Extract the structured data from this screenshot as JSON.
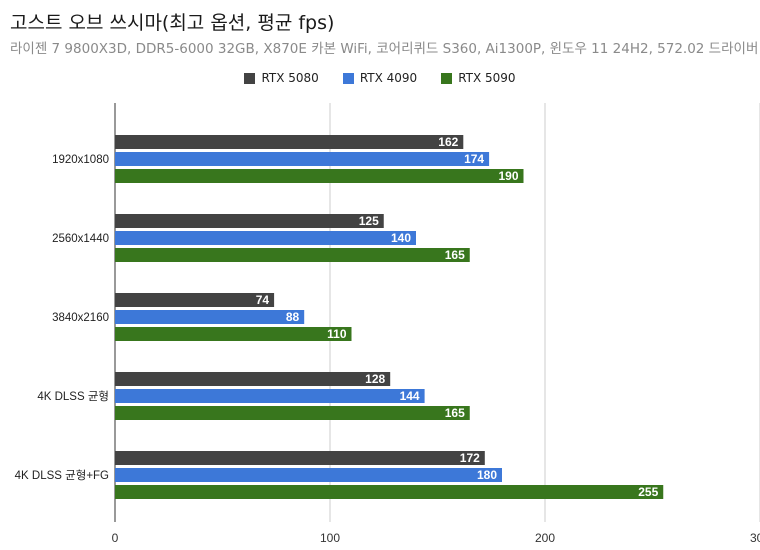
{
  "chart_data": {
    "type": "bar",
    "orientation": "horizontal",
    "title": "고스트 오브 쓰시마(최고 옵션, 평균 fps)",
    "subtitle": "라이젠 7 9800X3D, DDR5-6000 32GB, X870E 카본 WiFi, 코어리퀴드 S360, Ai1300P, 윈도우 11 24H2, 572.02 드라이버",
    "categories": [
      "1920x1080",
      "2560x1440",
      "3840x2160",
      "4K DLSS 균형",
      "4K DLSS 균형+FG"
    ],
    "series": [
      {
        "name": "RTX 5080",
        "color": "#434343",
        "values": [
          162,
          125,
          74,
          128,
          172
        ]
      },
      {
        "name": "RTX 4090",
        "color": "#3d78d8",
        "values": [
          174,
          140,
          88,
          144,
          180
        ]
      },
      {
        "name": "RTX 5090",
        "color": "#38761d",
        "values": [
          190,
          165,
          110,
          165,
          255
        ]
      }
    ],
    "xlim": [
      0,
      300
    ],
    "xticks": [
      0,
      100,
      200,
      300
    ],
    "grid": true,
    "legend_position": "top"
  }
}
